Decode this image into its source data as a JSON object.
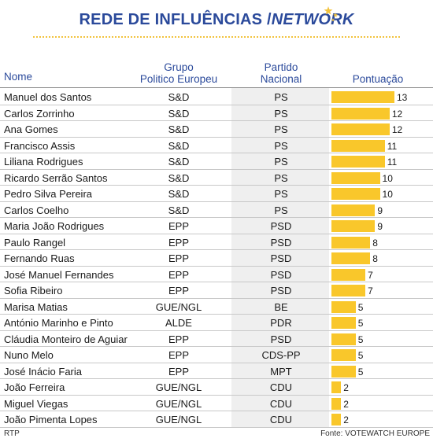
{
  "title_main": "REDE DE INFLUÊNCIAS /",
  "title_italic": "NETWORK",
  "headers": {
    "nome": "Nome",
    "grupo_line1": "Grupo",
    "grupo_line2": "Politico Europeu",
    "partido_line1": "Partido",
    "partido_line2": "Nacional",
    "pontuacao": "Pontuação"
  },
  "footer": {
    "left": "RTP",
    "right": "Fonte: VOTEWATCH EUROPE"
  },
  "colors": {
    "title": "#2b4a9b",
    "bar": "#f9c72b",
    "band": "#efefef"
  },
  "chart_data": {
    "type": "table",
    "columns": [
      "Nome",
      "Grupo Politico Europeu",
      "Partido Nacional",
      "Pontuação"
    ],
    "xlim": [
      0,
      13
    ],
    "rows": [
      {
        "nome": "Manuel dos Santos",
        "grupo": "S&D",
        "partido": "PS",
        "pontuacao": 13
      },
      {
        "nome": "Carlos Zorrinho",
        "grupo": "S&D",
        "partido": "PS",
        "pontuacao": 12
      },
      {
        "nome": "Ana Gomes",
        "grupo": "S&D",
        "partido": "PS",
        "pontuacao": 12
      },
      {
        "nome": "Francisco Assis",
        "grupo": "S&D",
        "partido": "PS",
        "pontuacao": 11
      },
      {
        "nome": "Liliana Rodrigues",
        "grupo": "S&D",
        "partido": "PS",
        "pontuacao": 11
      },
      {
        "nome": "Ricardo Serrão Santos",
        "grupo": "S&D",
        "partido": "PS",
        "pontuacao": 10
      },
      {
        "nome": "Pedro Silva Pereira",
        "grupo": "S&D",
        "partido": "PS",
        "pontuacao": 10
      },
      {
        "nome": "Carlos Coelho",
        "grupo": "S&D",
        "partido": "PS",
        "pontuacao": 9
      },
      {
        "nome": "Maria João Rodrigues",
        "grupo": "EPP",
        "partido": "PSD",
        "pontuacao": 9
      },
      {
        "nome": "Paulo Rangel",
        "grupo": "EPP",
        "partido": "PSD",
        "pontuacao": 8
      },
      {
        "nome": "Fernando Ruas",
        "grupo": "EPP",
        "partido": "PSD",
        "pontuacao": 8
      },
      {
        "nome": "José Manuel Fernandes",
        "grupo": "EPP",
        "partido": "PSD",
        "pontuacao": 7
      },
      {
        "nome": "Sofia Ribeiro",
        "grupo": "EPP",
        "partido": "PSD",
        "pontuacao": 7
      },
      {
        "nome": "Marisa Matias",
        "grupo": "GUE/NGL",
        "partido": "BE",
        "pontuacao": 5
      },
      {
        "nome": "António Marinho e Pinto",
        "grupo": "ALDE",
        "partido": "PDR",
        "pontuacao": 5
      },
      {
        "nome": "Cláudia Monteiro de Aguiar",
        "grupo": "EPP",
        "partido": "PSD",
        "pontuacao": 5
      },
      {
        "nome": "Nuno Melo",
        "grupo": "EPP",
        "partido": "CDS-PP",
        "pontuacao": 5
      },
      {
        "nome": "José Inácio Faria",
        "grupo": "EPP",
        "partido": "MPT",
        "pontuacao": 5
      },
      {
        "nome": "João Ferreira",
        "grupo": "GUE/NGL",
        "partido": "CDU",
        "pontuacao": 2
      },
      {
        "nome": "Miguel Viegas",
        "grupo": "GUE/NGL",
        "partido": "CDU",
        "pontuacao": 2
      },
      {
        "nome": "João Pimenta Lopes",
        "grupo": "GUE/NGL",
        "partido": "CDU",
        "pontuacao": 2
      }
    ]
  }
}
